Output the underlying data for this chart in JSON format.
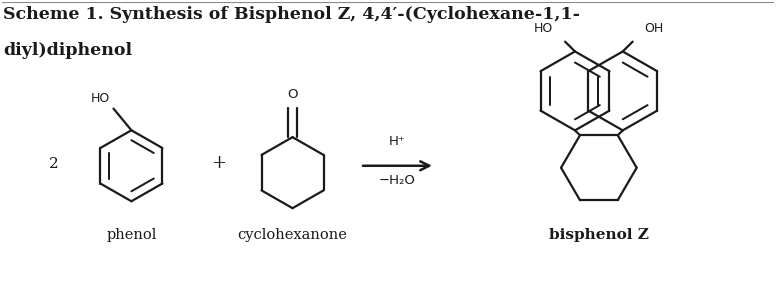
{
  "title_line1": "Scheme 1. Synthesis of Bisphenol Z, 4,4′-(Cyclohexane-1,1-",
  "title_line2": "diyl)diphenol",
  "label_2": "2",
  "label_plus": "+",
  "label_phenol": "phenol",
  "label_cyclohexanone": "cyclohexanone",
  "label_bisphenol": "bisphenol Z",
  "arrow_text1": "H⁺",
  "arrow_text2": "−H₂O",
  "bg_color": "#ffffff",
  "text_color": "#1a1a1a",
  "line_color": "#1a1a1a",
  "title_fontsize": 12.5,
  "label_fontsize": 10.5,
  "arrow_fontsize": 9.5,
  "ho_fontsize": 9.0
}
